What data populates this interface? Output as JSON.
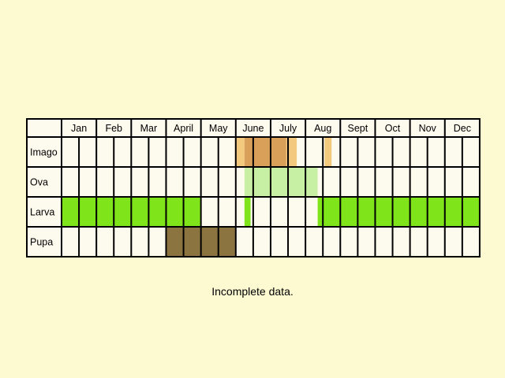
{
  "months": [
    "Jan",
    "Feb",
    "Mar",
    "April",
    "May",
    "June",
    "July",
    "Aug",
    "Sept",
    "Oct",
    "Nov",
    "Dec"
  ],
  "stages": [
    {
      "name": "Imago",
      "bands": [
        {
          "from": 9.95,
          "to": 10.5,
          "color": "#f3c97d"
        },
        {
          "from": 10.5,
          "to": 12.9,
          "color": "#d9a05a"
        },
        {
          "from": 12.9,
          "to": 13.5,
          "color": "#f3c97d"
        },
        {
          "from": 15.1,
          "to": 15.5,
          "color": "#f3c97d"
        }
      ]
    },
    {
      "name": "Ova",
      "bands": [
        {
          "from": 10.5,
          "to": 14.7,
          "color": "#c8f0a5"
        }
      ]
    },
    {
      "name": "Larva",
      "bands": [
        {
          "from": 0,
          "to": 8,
          "color": "#7fe51a"
        },
        {
          "from": 10.5,
          "to": 10.85,
          "color": "#7fe51a"
        },
        {
          "from": 14.7,
          "to": 24,
          "color": "#7fe51a"
        }
      ]
    },
    {
      "name": "Pupa",
      "bands": [
        {
          "from": 6,
          "to": 10,
          "color": "#8c7440"
        }
      ]
    }
  ],
  "note": "Incomplete data.",
  "colors": {
    "background": "#fdfad2",
    "cell": "#fdfaee",
    "grid": "#000000"
  }
}
